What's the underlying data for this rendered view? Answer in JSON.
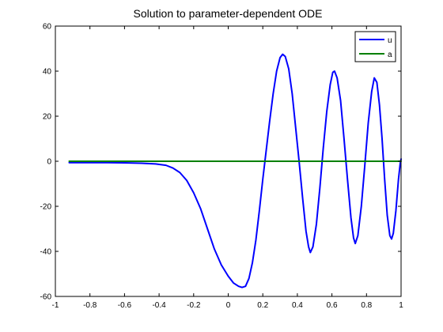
{
  "chart_data": {
    "type": "line",
    "title": "Solution to parameter-dependent ODE",
    "xlabel": "",
    "ylabel": "",
    "xlim": [
      -1,
      1
    ],
    "ylim": [
      -60,
      60
    ],
    "x_ticks": [
      -1,
      -0.8,
      -0.6,
      -0.4,
      -0.2,
      0,
      0.2,
      0.4,
      0.6,
      0.8,
      1
    ],
    "x_tick_labels": [
      "-1",
      "-0.8",
      "-0.6",
      "-0.4",
      "-0.2",
      "0",
      "0.2",
      "0.4",
      "0.6",
      "0.8",
      "1"
    ],
    "y_ticks": [
      -60,
      -40,
      -20,
      0,
      20,
      40,
      60
    ],
    "y_tick_labels": [
      "-60",
      "-40",
      "-20",
      "0",
      "20",
      "40",
      "60"
    ],
    "grid": false,
    "legend_position": "top-right",
    "series": [
      {
        "name": "u",
        "color": "#0000ff",
        "points": [
          [
            -0.92,
            -0.6
          ],
          [
            -0.85,
            -0.6
          ],
          [
            -0.8,
            -0.6
          ],
          [
            -0.7,
            -0.6
          ],
          [
            -0.6,
            -0.7
          ],
          [
            -0.5,
            -0.9
          ],
          [
            -0.42,
            -1.2
          ],
          [
            -0.36,
            -1.8
          ],
          [
            -0.32,
            -3.0
          ],
          [
            -0.28,
            -5.0
          ],
          [
            -0.24,
            -8.5
          ],
          [
            -0.2,
            -14
          ],
          [
            -0.16,
            -21
          ],
          [
            -0.12,
            -30
          ],
          [
            -0.08,
            -39
          ],
          [
            -0.04,
            -46
          ],
          [
            0.0,
            -51
          ],
          [
            0.03,
            -54
          ],
          [
            0.06,
            -55.5
          ],
          [
            0.08,
            -56
          ],
          [
            0.1,
            -55.5
          ],
          [
            0.12,
            -52
          ],
          [
            0.14,
            -45
          ],
          [
            0.16,
            -35
          ],
          [
            0.18,
            -22
          ],
          [
            0.2,
            -8
          ],
          [
            0.22,
            5
          ],
          [
            0.24,
            18
          ],
          [
            0.26,
            30
          ],
          [
            0.28,
            40
          ],
          [
            0.3,
            46
          ],
          [
            0.315,
            47.5
          ],
          [
            0.33,
            46.5
          ],
          [
            0.35,
            41
          ],
          [
            0.37,
            30
          ],
          [
            0.39,
            15
          ],
          [
            0.41,
            0
          ],
          [
            0.43,
            -16
          ],
          [
            0.45,
            -31
          ],
          [
            0.465,
            -38
          ],
          [
            0.475,
            -40.5
          ],
          [
            0.49,
            -38
          ],
          [
            0.51,
            -28
          ],
          [
            0.53,
            -12
          ],
          [
            0.55,
            6
          ],
          [
            0.57,
            22
          ],
          [
            0.59,
            34
          ],
          [
            0.605,
            39.5
          ],
          [
            0.615,
            40
          ],
          [
            0.63,
            37
          ],
          [
            0.65,
            27
          ],
          [
            0.67,
            10
          ],
          [
            0.69,
            -8
          ],
          [
            0.71,
            -25
          ],
          [
            0.725,
            -34
          ],
          [
            0.735,
            -36.5
          ],
          [
            0.75,
            -33
          ],
          [
            0.77,
            -20
          ],
          [
            0.79,
            -2
          ],
          [
            0.81,
            17
          ],
          [
            0.83,
            31
          ],
          [
            0.845,
            37
          ],
          [
            0.86,
            35
          ],
          [
            0.875,
            25
          ],
          [
            0.89,
            10
          ],
          [
            0.905,
            -8
          ],
          [
            0.92,
            -24
          ],
          [
            0.935,
            -33
          ],
          [
            0.945,
            -34.5
          ],
          [
            0.955,
            -32
          ],
          [
            0.97,
            -22
          ],
          [
            0.985,
            -8
          ],
          [
            0.995,
            -1
          ],
          [
            1.0,
            1
          ]
        ]
      },
      {
        "name": "a",
        "color": "#008000",
        "points": [
          [
            -0.92,
            0
          ],
          [
            1.0,
            0
          ]
        ]
      }
    ]
  }
}
